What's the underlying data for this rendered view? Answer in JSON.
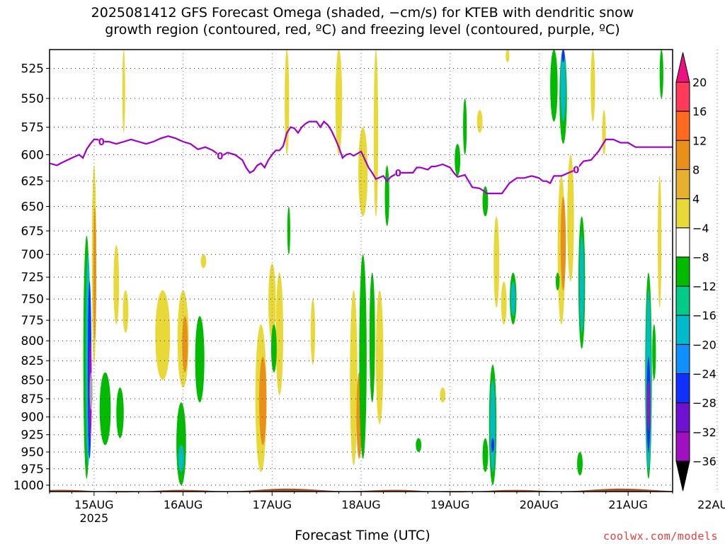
{
  "title": {
    "line1": "2025081412 GFS Forecast Omega (shaded, −cm/s) for KTEB with dendritic snow",
    "line2": "growth region (contoured, red, ºC) and freezing level (contoured, purple, ºC)"
  },
  "credit": "coolwx.com/models",
  "chart_data": {
    "type": "contour",
    "title": "2025081412 GFS Forecast Omega (shaded, −cm/s) for KTEB with dendritic snow growth region (contoured, red, ºC) and freezing level (contoured, purple, ºC)",
    "xlabel": "Forecast Time (UTC)",
    "ylabel": "",
    "x_ticks": [
      "15AUG",
      "16AUG",
      "17AUG",
      "18AUG",
      "19AUG",
      "20AUG",
      "21AUG",
      "22AUG"
    ],
    "x_tick_sub": "2025",
    "xlim_hours": [
      -12,
      156
    ],
    "y_ticks": [
      525,
      550,
      575,
      600,
      625,
      650,
      675,
      700,
      725,
      750,
      775,
      800,
      825,
      850,
      875,
      900,
      925,
      950,
      975,
      1000
    ],
    "ylim": [
      510,
      1010
    ],
    "y_scale": "log-pressure",
    "grid": true,
    "colorbar": {
      "labels": [
        "20",
        "16",
        "12",
        "8",
        "4",
        "−4",
        "−8",
        "−12",
        "−16",
        "−20",
        "−24",
        "−28",
        "−32",
        "−36"
      ],
      "colors": [
        "#ff3a5a",
        "#ff6a20",
        "#e8901a",
        "#e6b030",
        "#e8d838",
        "#ffffff",
        "#00bb00",
        "#00cc88",
        "#00bbcc",
        "#1090ff",
        "#1030ff",
        "#7010d0",
        "#a010c0",
        "#a8a8a8"
      ],
      "top_arrow_color": "#ee1080",
      "bottom_arrow_color": "#000000"
    },
    "freezing_level_label": "0",
    "freezing_level_color": "#a000c8",
    "freezing_level": {
      "x_hours": [
        -12,
        -10,
        -9,
        -6,
        -4,
        -3,
        -2,
        -1,
        0,
        1,
        2,
        4,
        6,
        8,
        10,
        12,
        14,
        16,
        18,
        20,
        22,
        24,
        26,
        28,
        30,
        32,
        34,
        35,
        36,
        38,
        40,
        41,
        42,
        43,
        44,
        45,
        46,
        47,
        48,
        49,
        50,
        51,
        52,
        53,
        54,
        55,
        56,
        57,
        58,
        60,
        61,
        62,
        63,
        64,
        65,
        66,
        67,
        68,
        69,
        70,
        72,
        74,
        75,
        76,
        78,
        79,
        80,
        82,
        84,
        86,
        87,
        88,
        90,
        91,
        92,
        94,
        96,
        97,
        98,
        100,
        102,
        104,
        106,
        108,
        110,
        112,
        114,
        116,
        118,
        120,
        121,
        122,
        123,
        124,
        126,
        128,
        130,
        132,
        134,
        136,
        138,
        140,
        142,
        144,
        146,
        148,
        150,
        152,
        154,
        156
      ],
      "pressure_hPa": [
        608,
        610,
        608,
        603,
        600,
        603,
        595,
        590,
        586,
        586,
        588,
        588,
        590,
        588,
        586,
        588,
        590,
        588,
        585,
        583,
        585,
        588,
        590,
        595,
        593,
        596,
        601,
        600,
        598,
        600,
        605,
        612,
        617,
        615,
        610,
        608,
        612,
        605,
        600,
        596,
        596,
        592,
        580,
        575,
        576,
        580,
        575,
        572,
        570,
        570,
        575,
        570,
        573,
        578,
        585,
        593,
        603,
        600,
        599,
        601,
        597,
        612,
        617,
        623,
        620,
        625,
        621,
        617,
        617,
        617,
        612,
        612,
        614,
        611,
        611,
        609,
        612,
        617,
        621,
        619,
        631,
        632,
        637,
        637,
        637,
        627,
        622,
        622,
        620,
        622,
        625,
        625,
        627,
        620,
        620,
        617,
        614,
        606,
        605,
        597,
        586,
        586,
        589,
        589,
        593,
        593,
        593,
        593,
        593,
        593
      ]
    },
    "omega_cells": [
      {
        "x": -2,
        "w": 1.8,
        "p0": 680,
        "p1": 990,
        "v": -6
      },
      {
        "x": -1.6,
        "w": 1.3,
        "p0": 700,
        "p1": 970,
        "v": -12
      },
      {
        "x": -1.2,
        "w": 1,
        "p0": 730,
        "p1": 960,
        "v": -22
      },
      {
        "x": -1.0,
        "w": 0.7,
        "p0": 800,
        "p1": 930,
        "v": -28
      },
      {
        "x": -0.8,
        "w": 0.4,
        "p0": 840,
        "p1": 890,
        "v": -34
      },
      {
        "x": 0,
        "w": 1.2,
        "p0": 610,
        "p1": 830,
        "v": 6
      },
      {
        "x": 0.2,
        "w": 0.7,
        "p0": 650,
        "p1": 800,
        "v": 10
      },
      {
        "x": 3,
        "w": 3,
        "p0": 840,
        "p1": 940,
        "v": -6
      },
      {
        "x": 7,
        "w": 2,
        "p0": 860,
        "p1": 930,
        "v": -6
      },
      {
        "x": 6,
        "w": 1.5,
        "p0": 690,
        "p1": 780,
        "v": 6
      },
      {
        "x": 8.5,
        "w": 1.5,
        "p0": 740,
        "p1": 790,
        "v": 6
      },
      {
        "x": 8,
        "w": 0.6,
        "p0": 510,
        "p1": 580,
        "v": 6
      },
      {
        "x": 18.5,
        "w": 4,
        "p0": 740,
        "p1": 850,
        "v": 6
      },
      {
        "x": 24,
        "w": 3,
        "p0": 740,
        "p1": 860,
        "v": 6
      },
      {
        "x": 24.5,
        "w": 1.5,
        "p0": 770,
        "p1": 840,
        "v": 10
      },
      {
        "x": 28.5,
        "w": 2.5,
        "p0": 770,
        "p1": 880,
        "v": -6
      },
      {
        "x": 23.5,
        "w": 2.6,
        "p0": 880,
        "p1": 1000,
        "v": -6
      },
      {
        "x": 23.5,
        "w": 1.5,
        "p0": 940,
        "p1": 980,
        "v": -12
      },
      {
        "x": 29.5,
        "w": 1.5,
        "p0": 700,
        "p1": 715,
        "v": 6
      },
      {
        "x": 45,
        "w": 3,
        "p0": 780,
        "p1": 980,
        "v": 6
      },
      {
        "x": 45.5,
        "w": 2,
        "p0": 820,
        "p1": 940,
        "v": 10
      },
      {
        "x": 50,
        "w": 2,
        "p0": 720,
        "p1": 870,
        "v": 6
      },
      {
        "x": 48,
        "w": 2,
        "p0": 710,
        "p1": 800,
        "v": 6
      },
      {
        "x": 52,
        "w": 1.2,
        "p0": 510,
        "p1": 600,
        "v": 6
      },
      {
        "x": 52.5,
        "w": 0.8,
        "p0": 650,
        "p1": 700,
        "v": -6
      },
      {
        "x": 48.5,
        "w": 1.5,
        "p0": 780,
        "p1": 840,
        "v": -6
      },
      {
        "x": 59,
        "w": 1.2,
        "p0": 750,
        "p1": 830,
        "v": 6
      },
      {
        "x": 66,
        "w": 1.8,
        "p0": 510,
        "p1": 600,
        "v": 6
      },
      {
        "x": 70,
        "w": 2,
        "p0": 740,
        "p1": 970,
        "v": 6
      },
      {
        "x": 71.5,
        "w": 1.5,
        "p0": 840,
        "p1": 960,
        "v": 10
      },
      {
        "x": 72.5,
        "w": 2,
        "p0": 700,
        "p1": 960,
        "v": -6
      },
      {
        "x": 75,
        "w": 1.5,
        "p0": 720,
        "p1": 880,
        "v": -6
      },
      {
        "x": 77,
        "w": 2,
        "p0": 740,
        "p1": 910,
        "v": 6
      },
      {
        "x": 72.5,
        "w": 2.5,
        "p0": 575,
        "p1": 660,
        "v": 6
      },
      {
        "x": 76,
        "w": 1.2,
        "p0": 510,
        "p1": 660,
        "v": 6
      },
      {
        "x": 79,
        "w": 1.2,
        "p0": 610,
        "p1": 670,
        "v": -6
      },
      {
        "x": 87.5,
        "w": 1.5,
        "p0": 930,
        "p1": 950,
        "v": -6
      },
      {
        "x": 94,
        "w": 1.5,
        "p0": 860,
        "p1": 880,
        "v": 6
      },
      {
        "x": 98,
        "w": 1.5,
        "p0": 590,
        "p1": 620,
        "v": -6
      },
      {
        "x": 100,
        "w": 1,
        "p0": 550,
        "p1": 600,
        "v": -6
      },
      {
        "x": 104,
        "w": 1.5,
        "p0": 560,
        "p1": 580,
        "v": 6
      },
      {
        "x": 105.5,
        "w": 1.5,
        "p0": 630,
        "p1": 660,
        "v": -6
      },
      {
        "x": 108.5,
        "w": 1.5,
        "p0": 660,
        "p1": 760,
        "v": 6
      },
      {
        "x": 105.5,
        "w": 1.5,
        "p0": 930,
        "p1": 980,
        "v": -6
      },
      {
        "x": 107.5,
        "w": 2,
        "p0": 830,
        "p1": 1000,
        "v": -6
      },
      {
        "x": 107.5,
        "w": 1.4,
        "p0": 850,
        "p1": 980,
        "v": -12
      },
      {
        "x": 107.5,
        "w": 0.8,
        "p0": 930,
        "p1": 950,
        "v": -20
      },
      {
        "x": 110.5,
        "w": 1.5,
        "p0": 730,
        "p1": 780,
        "v": 6
      },
      {
        "x": 113,
        "w": 1.8,
        "p0": 720,
        "p1": 780,
        "v": -6
      },
      {
        "x": 113,
        "w": 1.2,
        "p0": 730,
        "p1": 770,
        "v": -12
      },
      {
        "x": 111.5,
        "w": 1,
        "p0": 510,
        "p1": 520,
        "v": 6
      },
      {
        "x": 124,
        "w": 2,
        "p0": 510,
        "p1": 570,
        "v": -6
      },
      {
        "x": 126.5,
        "w": 2,
        "p0": 510,
        "p1": 590,
        "v": -6
      },
      {
        "x": 126.5,
        "w": 1.4,
        "p0": 510,
        "p1": 570,
        "v": -12
      },
      {
        "x": 126.5,
        "w": 0.8,
        "p0": 510,
        "p1": 520,
        "v": -20
      },
      {
        "x": 126,
        "w": 2,
        "p0": 620,
        "p1": 780,
        "v": 6
      },
      {
        "x": 126.5,
        "w": 1.4,
        "p0": 640,
        "p1": 740,
        "v": 10
      },
      {
        "x": 128.5,
        "w": 1.8,
        "p0": 600,
        "p1": 730,
        "v": 6
      },
      {
        "x": 125,
        "w": 1,
        "p0": 720,
        "p1": 740,
        "v": -6
      },
      {
        "x": 131.5,
        "w": 1.8,
        "p0": 660,
        "p1": 810,
        "v": -6
      },
      {
        "x": 131.5,
        "w": 1.2,
        "p0": 680,
        "p1": 790,
        "v": -12
      },
      {
        "x": 134.5,
        "w": 1.2,
        "p0": 510,
        "p1": 570,
        "v": 6
      },
      {
        "x": 137.5,
        "w": 1,
        "p0": 560,
        "p1": 600,
        "v": 6
      },
      {
        "x": 131,
        "w": 1.5,
        "p0": 950,
        "p1": 985,
        "v": -6
      },
      {
        "x": 149.5,
        "w": 1.8,
        "p0": 720,
        "p1": 990,
        "v": -6
      },
      {
        "x": 149.5,
        "w": 1.4,
        "p0": 740,
        "p1": 980,
        "v": -12
      },
      {
        "x": 149.5,
        "w": 1,
        "p0": 820,
        "p1": 950,
        "v": -20
      },
      {
        "x": 149.5,
        "w": 0.6,
        "p0": 850,
        "p1": 920,
        "v": -28
      },
      {
        "x": 151,
        "w": 1,
        "p0": 780,
        "p1": 850,
        "v": -6
      },
      {
        "x": 152.5,
        "w": 1,
        "p0": 620,
        "p1": 760,
        "v": 6
      },
      {
        "x": 153,
        "w": 1,
        "p0": 510,
        "p1": 550,
        "v": -6
      }
    ]
  }
}
